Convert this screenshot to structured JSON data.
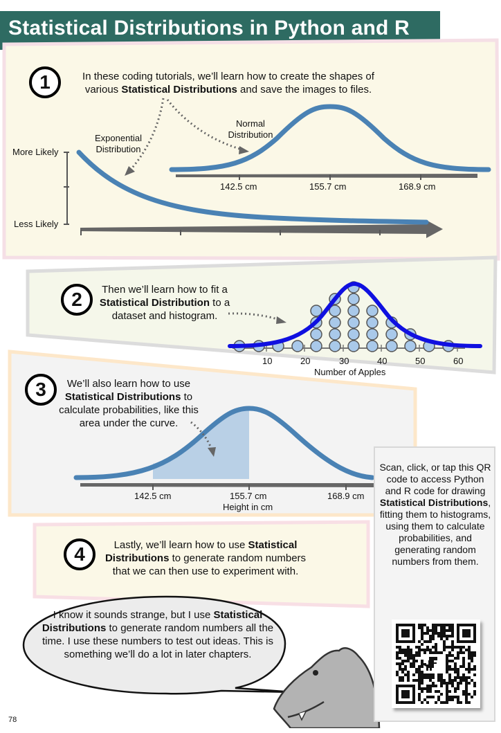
{
  "page_title": "Statistical Distributions in Python and R",
  "page_number": "78",
  "section1": {
    "number": "1",
    "text_pre": "In these coding tutorials, we’ll learn how to create the shapes of various ",
    "text_bold": "Statistical Distributions",
    "text_post": " and save the images to files.",
    "exponential_label": "Exponential Distribution",
    "normal_label": "Normal Distribution",
    "y_top": "More Likely",
    "y_bottom": "Less Likely",
    "ticks": [
      "142.5 cm",
      "155.7 cm",
      "168.9 cm"
    ]
  },
  "section2": {
    "number": "2",
    "text_pre": "Then we’ll learn how to fit a ",
    "text_bold": "Statistical Distribution",
    "text_post": " to a dataset and histogram.",
    "ticks": [
      "10",
      "20",
      "30",
      "40",
      "50",
      "60"
    ],
    "xlabel": "Number of Apples"
  },
  "section3": {
    "number": "3",
    "text_pre": "We’ll also learn how to use ",
    "text_bold": "Statistical Distributions",
    "text_post": " to calculate probabilities, like this area under the curve.",
    "ticks": [
      "142.5 cm",
      "155.7 cm",
      "168.9 cm"
    ],
    "xlabel": "Height in cm"
  },
  "section4": {
    "number": "4",
    "text_pre": "Lastly, we’ll learn how to use ",
    "text_bold": "Statistical Distributions",
    "text_post": " to generate random numbers that we can then use to experiment with."
  },
  "speech": {
    "text_pre": "I know it sounds strange, but I use ",
    "text_bold": "Statistical Distributions",
    "text_post": " to generate random numbers all the time. I use these numbers to test out ideas. This is something we’ll do a lot in later chapters."
  },
  "qr": {
    "text_pre": "Scan, click, or tap this QR code to access Python and R code for drawing ",
    "text_bold": "Statistical Distributions",
    "text_post": ", fitting them to histograms, using them to calculate probabilities, and generating random numbers from them."
  },
  "colors": {
    "title_bg": "#2e6b62",
    "curve_blue": "#4a82b4",
    "fit_blue": "#1010e0",
    "dot_fill": "#a9c9ea",
    "area_fill": "#b9d0e6"
  }
}
